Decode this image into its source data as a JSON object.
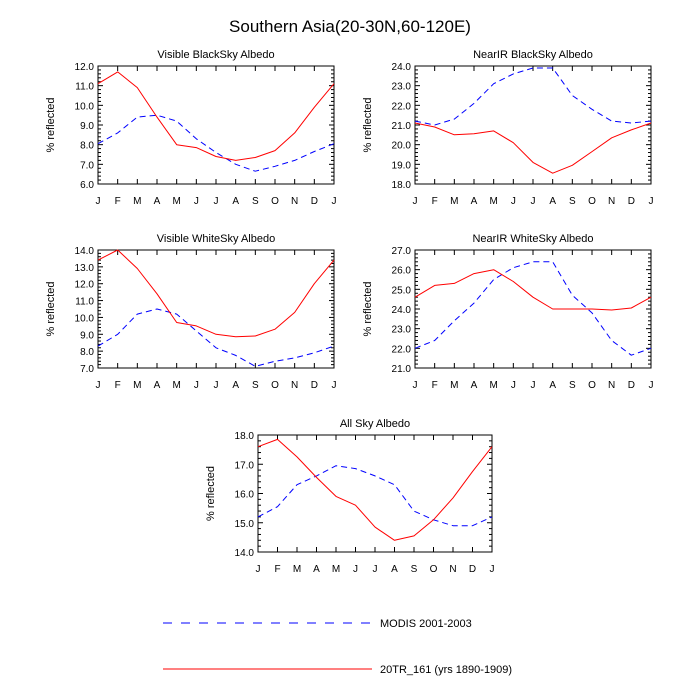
{
  "title": "Southern Asia(20-30N,60-120E)",
  "colors": {
    "obs": "#0000ff",
    "model": "#ff0000",
    "axis": "#000000"
  },
  "legend": [
    {
      "key": "obs",
      "label": "MODIS 2001-2003",
      "style": "dashed"
    },
    {
      "key": "model",
      "label": "20TR_161 (yrs 1890-1909)",
      "style": "solid"
    }
  ],
  "chart_data": [
    {
      "type": "line",
      "title": "Visible BlackSky Albedo",
      "ylabel": "% reflected",
      "x": [
        "J",
        "F",
        "M",
        "A",
        "M",
        "J",
        "J",
        "A",
        "S",
        "O",
        "N",
        "D",
        "J"
      ],
      "ylim": [
        6.0,
        12.0
      ],
      "yticks": [
        "6.0",
        "7.0",
        "8.0",
        "9.0",
        "10.0",
        "11.0",
        "12.0"
      ],
      "series": [
        {
          "name": "MODIS 2001-2003",
          "key": "obs",
          "values": [
            8.05,
            8.6,
            9.4,
            9.5,
            9.2,
            8.3,
            7.6,
            7.0,
            6.65,
            6.9,
            7.2,
            7.65,
            8.05
          ]
        },
        {
          "name": "20TR_161 (yrs 1890-1909)",
          "key": "model",
          "values": [
            11.1,
            11.7,
            10.9,
            9.4,
            8.0,
            7.85,
            7.4,
            7.2,
            7.35,
            7.7,
            8.6,
            9.9,
            11.1
          ]
        }
      ]
    },
    {
      "type": "line",
      "title": "NearIR BlackSky Albedo",
      "ylabel": "% reflected",
      "x": [
        "J",
        "F",
        "M",
        "A",
        "M",
        "J",
        "J",
        "A",
        "S",
        "O",
        "N",
        "D",
        "J"
      ],
      "ylim": [
        18.0,
        24.0
      ],
      "yticks": [
        "18.0",
        "19.0",
        "20.0",
        "21.0",
        "22.0",
        "23.0",
        "24.0"
      ],
      "series": [
        {
          "name": "MODIS 2001-2003",
          "key": "obs",
          "values": [
            21.2,
            21.0,
            21.3,
            22.1,
            23.1,
            23.6,
            23.9,
            23.9,
            22.5,
            21.8,
            21.2,
            21.1,
            21.2
          ]
        },
        {
          "name": "20TR_161 (yrs 1890-1909)",
          "key": "model",
          "values": [
            21.1,
            20.9,
            20.5,
            20.55,
            20.7,
            20.1,
            19.1,
            18.55,
            18.95,
            19.65,
            20.35,
            20.75,
            21.1
          ]
        }
      ]
    },
    {
      "type": "line",
      "title": "Visible WhiteSky Albedo",
      "ylabel": "% reflected",
      "x": [
        "J",
        "F",
        "M",
        "A",
        "M",
        "J",
        "J",
        "A",
        "S",
        "O",
        "N",
        "D",
        "J"
      ],
      "ylim": [
        7.0,
        14.0
      ],
      "yticks": [
        "7.0",
        "8.0",
        "9.0",
        "10.0",
        "11.0",
        "12.0",
        "13.0",
        "14.0"
      ],
      "series": [
        {
          "name": "MODIS 2001-2003",
          "key": "obs",
          "values": [
            8.3,
            9.0,
            10.2,
            10.5,
            10.2,
            9.2,
            8.2,
            7.75,
            7.1,
            7.4,
            7.6,
            7.9,
            8.3
          ]
        },
        {
          "name": "20TR_161 (yrs 1890-1909)",
          "key": "model",
          "values": [
            13.4,
            14.0,
            12.9,
            11.4,
            9.7,
            9.5,
            9.0,
            8.85,
            8.9,
            9.3,
            10.3,
            12.0,
            13.4
          ]
        }
      ]
    },
    {
      "type": "line",
      "title": "NearIR WhiteSky Albedo",
      "ylabel": "% reflected",
      "x": [
        "J",
        "F",
        "M",
        "A",
        "M",
        "J",
        "J",
        "A",
        "S",
        "O",
        "N",
        "D",
        "J"
      ],
      "ylim": [
        21.0,
        27.0
      ],
      "yticks": [
        "21.0",
        "22.0",
        "23.0",
        "24.0",
        "25.0",
        "26.0",
        "27.0"
      ],
      "series": [
        {
          "name": "MODIS 2001-2003",
          "key": "obs",
          "values": [
            22.0,
            22.4,
            23.4,
            24.3,
            25.5,
            26.1,
            26.4,
            26.4,
            24.7,
            23.8,
            22.4,
            21.65,
            22.0
          ]
        },
        {
          "name": "20TR_161 (yrs 1890-1909)",
          "key": "model",
          "values": [
            24.6,
            25.2,
            25.3,
            25.8,
            26.0,
            25.4,
            24.6,
            24.0,
            24.0,
            24.0,
            23.95,
            24.05,
            24.6
          ]
        }
      ]
    },
    {
      "type": "line",
      "title": "All Sky Albedo",
      "ylabel": "% reflected",
      "x": [
        "J",
        "F",
        "M",
        "A",
        "M",
        "J",
        "J",
        "A",
        "S",
        "O",
        "N",
        "D",
        "J"
      ],
      "ylim": [
        14.0,
        18.0
      ],
      "yticks": [
        "14.0",
        "15.0",
        "16.0",
        "17.0",
        "18.0"
      ],
      "series": [
        {
          "name": "MODIS 2001-2003",
          "key": "obs",
          "values": [
            15.2,
            15.55,
            16.3,
            16.6,
            16.95,
            16.85,
            16.6,
            16.3,
            15.4,
            15.1,
            14.9,
            14.9,
            15.2
          ]
        },
        {
          "name": "20TR_161 (yrs 1890-1909)",
          "key": "model",
          "values": [
            17.6,
            17.85,
            17.25,
            16.55,
            15.9,
            15.6,
            14.85,
            14.4,
            14.55,
            15.1,
            15.85,
            16.75,
            17.6
          ]
        }
      ]
    }
  ]
}
